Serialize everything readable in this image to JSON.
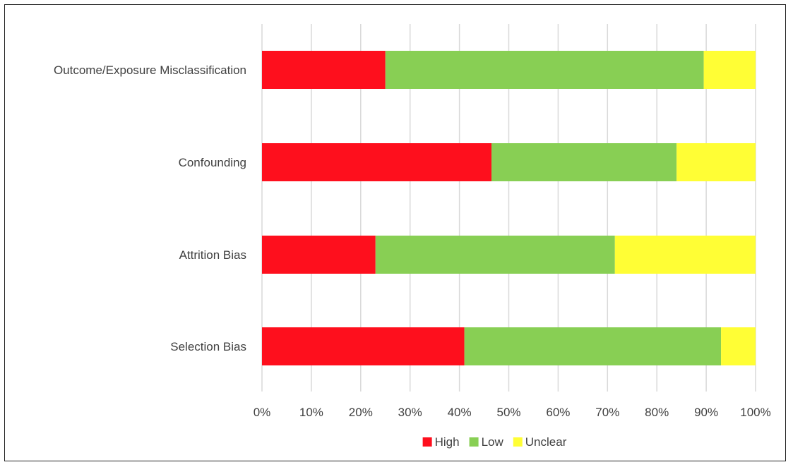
{
  "chart_data": {
    "type": "bar",
    "orientation": "horizontal",
    "stacked": "percent",
    "title": "",
    "xlabel": "",
    "ylabel": "",
    "categories": [
      "Outcome/Exposure Misclassification",
      "Confounding",
      "Attrition Bias",
      "Selection Bias"
    ],
    "series": [
      {
        "name": "High",
        "color": "#fe0f1d",
        "values": [
          25,
          46.5,
          23,
          41
        ]
      },
      {
        "name": "Low",
        "color": "#88cf54",
        "values": [
          64.5,
          37.5,
          48.5,
          52
        ]
      },
      {
        "name": "Unclear",
        "color": "#fffe35",
        "values": [
          10.5,
          16,
          28.5,
          7
        ]
      }
    ],
    "xlim": [
      0,
      100
    ],
    "x_ticks": [
      "0%",
      "10%",
      "20%",
      "30%",
      "40%",
      "50%",
      "60%",
      "70%",
      "80%",
      "90%",
      "100%"
    ],
    "grid": "vertical",
    "legend": "bottom-center"
  }
}
